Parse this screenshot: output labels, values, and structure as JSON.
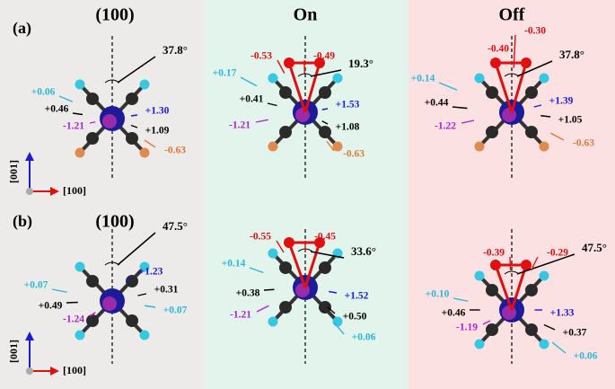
{
  "rows": [
    {
      "label": "(a)",
      "axes": {
        "vertical": "[001]",
        "horizontal": "[100]"
      },
      "panels": [
        {
          "title": "(100)",
          "angle": "37.8°",
          "charges": [
            {
              "text": "+0.06",
              "color": "#2bb8d6"
            },
            {
              "text": "+0.46",
              "color": "#000000"
            },
            {
              "text": "-1.21",
              "color": "#b020d0"
            },
            {
              "text": "+1.30",
              "color": "#1a1adb"
            },
            {
              "text": "+1.09",
              "color": "#000000"
            },
            {
              "text": "-0.63",
              "color": "#e07a3a"
            }
          ]
        },
        {
          "title": "On",
          "angle": "19.3°",
          "charges": [
            {
              "text": "-0.53",
              "color": "#e01010"
            },
            {
              "text": "-0.49",
              "color": "#e01010"
            },
            {
              "text": "+0.17",
              "color": "#2bb8d6"
            },
            {
              "text": "+0.41",
              "color": "#000000"
            },
            {
              "text": "+1.53",
              "color": "#1a1adb"
            },
            {
              "text": "-1.21",
              "color": "#b020d0"
            },
            {
              "text": "+1.08",
              "color": "#000000"
            },
            {
              "text": "-0.63",
              "color": "#e07a3a"
            }
          ]
        },
        {
          "title": "Off",
          "angle": "37.8°",
          "charges": [
            {
              "text": "-0.30",
              "color": "#e01010"
            },
            {
              "text": "-0.40",
              "color": "#e01010"
            },
            {
              "text": "+0.14",
              "color": "#2bb8d6"
            },
            {
              "text": "+0.44",
              "color": "#000000"
            },
            {
              "text": "+1.39",
              "color": "#1a1adb"
            },
            {
              "text": "-1.22",
              "color": "#b020d0"
            },
            {
              "text": "+1.05",
              "color": "#000000"
            },
            {
              "text": "-0.63",
              "color": "#e07a3a"
            }
          ]
        }
      ]
    },
    {
      "label": "(b)",
      "axes": {
        "vertical": "[001]",
        "horizontal": "[100]"
      },
      "panels": [
        {
          "title": "(100)",
          "angle": "47.5°",
          "charges": [
            {
              "text": "+0.07",
              "color": "#2bb8d6"
            },
            {
              "text": "+0.49",
              "color": "#000000"
            },
            {
              "text": "-1.24",
              "color": "#b020d0"
            },
            {
              "text": "+1.23",
              "color": "#1a1adb"
            },
            {
              "text": "+0.31",
              "color": "#000000"
            },
            {
              "text": "+0.07",
              "color": "#2bb8d6"
            }
          ]
        },
        {
          "angle": "33.6°",
          "charges": [
            {
              "text": "-0.55",
              "color": "#e01010"
            },
            {
              "text": "-0.45",
              "color": "#e01010"
            },
            {
              "text": "+0.14",
              "color": "#2bb8d6"
            },
            {
              "text": "+0.38",
              "color": "#000000"
            },
            {
              "text": "+1.52",
              "color": "#1a1adb"
            },
            {
              "text": "-1.21",
              "color": "#b020d0"
            },
            {
              "text": "+0.50",
              "color": "#000000"
            },
            {
              "text": "+0.06",
              "color": "#2bb8d6"
            }
          ]
        },
        {
          "angle": "47.5°",
          "charges": [
            {
              "text": "-0.39",
              "color": "#e01010"
            },
            {
              "text": "-0.29",
              "color": "#e01010"
            },
            {
              "text": "+0.10",
              "color": "#2bb8d6"
            },
            {
              "text": "+0.46",
              "color": "#000000"
            },
            {
              "text": "+1.33",
              "color": "#1a1adb"
            },
            {
              "text": "-1.19",
              "color": "#b020d0"
            },
            {
              "text": "+0.37",
              "color": "#000000"
            },
            {
              "text": "+0.06",
              "color": "#2bb8d6"
            }
          ]
        }
      ]
    }
  ]
}
